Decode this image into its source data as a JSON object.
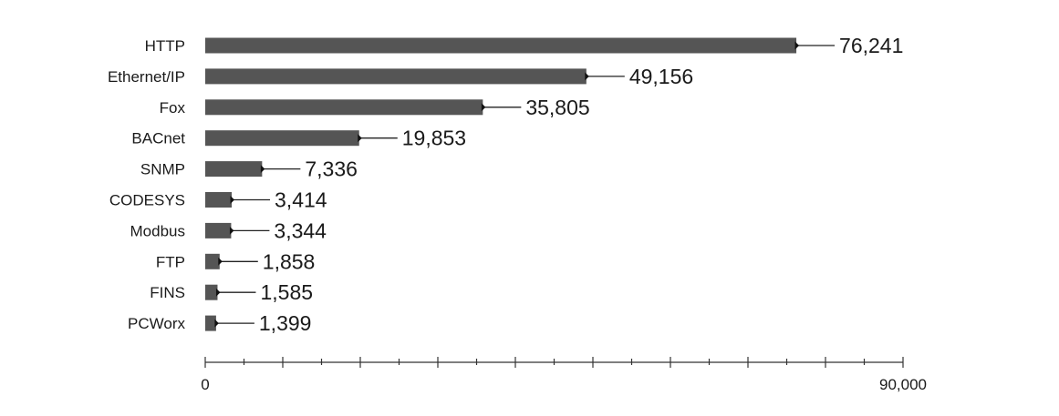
{
  "chart_data": {
    "type": "bar",
    "orientation": "horizontal",
    "title": "",
    "xlabel": "",
    "ylabel": "",
    "categories": [
      "HTTP",
      "Ethernet/IP",
      "Fox",
      "BACnet",
      "SNMP",
      "CODESYS",
      "Modbus",
      "FTP",
      "FINS",
      "PCWorx"
    ],
    "values": [
      76241,
      49156,
      35805,
      19853,
      7336,
      3414,
      3344,
      1858,
      1585,
      1399
    ],
    "value_labels": [
      "76,241",
      "49,156",
      "35,805",
      "19,853",
      "7,336",
      "3,414",
      "3,344",
      "1,858",
      "1,585",
      "1,399"
    ],
    "xlim": [
      0,
      90000
    ],
    "x_tick_labels": [
      {
        "value": 0,
        "label": "0"
      },
      {
        "value": 90000,
        "label": "90,000"
      }
    ],
    "major_tick_step": 10000,
    "minor_tick_step": 5000,
    "grid": false,
    "legend": "none",
    "bar_color": "#555555",
    "axis_color": "#333333"
  }
}
